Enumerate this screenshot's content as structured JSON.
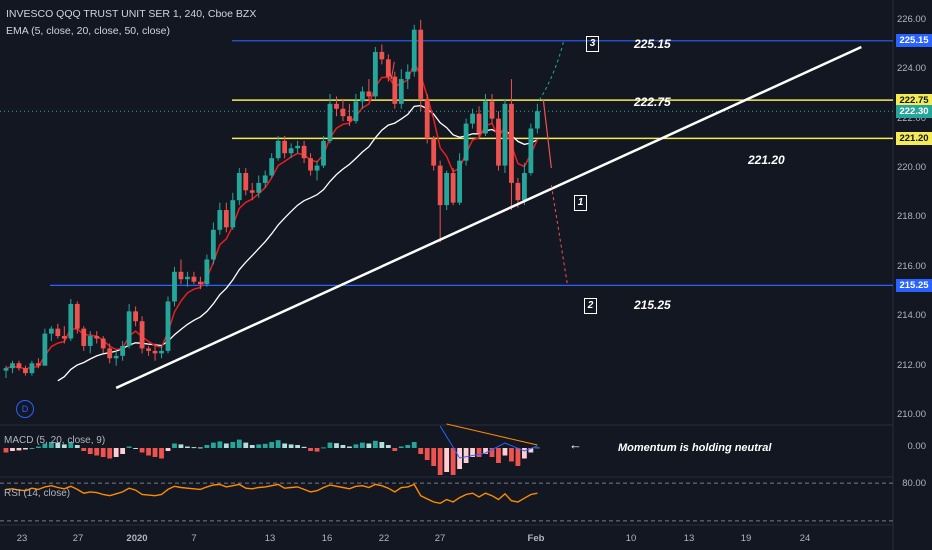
{
  "header": {
    "symbol_line": "INVESCO QQQ TRUST UNIT SER 1, 240, Cboe BZX",
    "ema_line": "EMA (5, close, 20, close, 50, close)"
  },
  "panels": {
    "macd_title": "MACD (5, 20, close, 9)",
    "rsi_title": "RSI (14, close)",
    "macd_axis": "0.00",
    "rsi_axis": "80.00"
  },
  "annotations": {
    "level_225": "225.15",
    "level_222": "222.75",
    "level_221": "221.20",
    "level_215": "215.25",
    "box_1": "1",
    "box_2": "2",
    "box_3": "3",
    "momentum_note": "Momentum is holding neutral",
    "left_arrow": "←",
    "d_badge": "D"
  },
  "price_axis": {
    "ticks": [
      "226.00",
      "224.00",
      "222.00",
      "220.00",
      "218.00",
      "216.00",
      "214.00",
      "212.00",
      "210.00"
    ],
    "labels": [
      {
        "text": "225.15",
        "color": "#2962ff",
        "fg": "#ffffff"
      },
      {
        "text": "222.75",
        "color": "#f5eb55",
        "fg": "#131722"
      },
      {
        "text": "222.30",
        "color": "#26a69a",
        "fg": "#ffffff"
      },
      {
        "text": "221.20",
        "color": "#f5eb55",
        "fg": "#131722"
      },
      {
        "text": "215.25",
        "color": "#2962ff",
        "fg": "#ffffff"
      }
    ]
  },
  "date_axis": [
    "23",
    "27",
    "2020",
    "7",
    "13",
    "16",
    "22",
    "27",
    "Feb",
    "10",
    "13",
    "19",
    "24"
  ],
  "colors": {
    "background": "#131722",
    "up": "#26a69a",
    "down": "#ef5350",
    "ema_fast": "#e91e1e",
    "ema_slow": "#ffffff",
    "level_blue": "#2962ff",
    "level_yellow": "#f5eb55",
    "trendline": "#ffffff",
    "rsi": "#ff8c00"
  },
  "chart_data": {
    "type": "candlestick",
    "title": "INVESCO QQQ TRUST UNIT SER 1, 240, Cboe BZX",
    "ylim": [
      209.6,
      226.6
    ],
    "y_ticks": [
      210,
      212,
      214,
      216,
      218,
      220,
      222,
      224,
      226
    ],
    "horizontal_levels": [
      225.15,
      222.75,
      221.2,
      215.25
    ],
    "last_price": 222.3,
    "candles": [
      [
        211.8,
        212.0,
        211.5,
        211.9
      ],
      [
        211.9,
        212.2,
        211.7,
        212.1
      ],
      [
        212.1,
        212.2,
        211.8,
        211.9
      ],
      [
        211.9,
        212.0,
        211.6,
        211.7
      ],
      [
        211.7,
        212.2,
        211.6,
        212.1
      ],
      [
        212.1,
        212.3,
        211.9,
        212.0
      ],
      [
        212.0,
        213.5,
        212.0,
        213.3
      ],
      [
        213.3,
        213.6,
        213.0,
        213.5
      ],
      [
        213.5,
        213.7,
        213.1,
        213.2
      ],
      [
        213.2,
        213.6,
        212.9,
        213.1
      ],
      [
        213.1,
        214.7,
        213.0,
        214.5
      ],
      [
        214.5,
        214.6,
        213.3,
        213.5
      ],
      [
        213.5,
        213.6,
        212.6,
        212.8
      ],
      [
        212.8,
        213.4,
        212.5,
        213.2
      ],
      [
        213.2,
        213.4,
        212.9,
        213.1
      ],
      [
        213.1,
        213.2,
        212.5,
        212.7
      ],
      [
        212.7,
        212.9,
        212.1,
        212.3
      ],
      [
        212.3,
        212.6,
        212.0,
        212.4
      ],
      [
        212.4,
        213.0,
        212.2,
        212.8
      ],
      [
        212.8,
        214.5,
        212.7,
        214.2
      ],
      [
        214.2,
        214.4,
        213.6,
        213.8
      ],
      [
        213.8,
        214.0,
        212.5,
        212.7
      ],
      [
        212.7,
        212.8,
        212.4,
        212.6
      ],
      [
        212.6,
        212.9,
        212.2,
        212.5
      ],
      [
        212.5,
        212.8,
        212.3,
        212.6
      ],
      [
        212.6,
        214.8,
        212.5,
        214.6
      ],
      [
        214.6,
        216.0,
        214.4,
        215.8
      ],
      [
        215.8,
        216.3,
        215.3,
        215.5
      ],
      [
        215.5,
        215.8,
        215.2,
        215.6
      ],
      [
        215.6,
        215.8,
        215.3,
        215.4
      ],
      [
        215.4,
        215.6,
        215.1,
        215.3
      ],
      [
        215.3,
        216.5,
        215.2,
        216.3
      ],
      [
        216.3,
        217.8,
        216.1,
        217.5
      ],
      [
        217.5,
        218.6,
        217.3,
        218.3
      ],
      [
        218.3,
        218.6,
        217.4,
        217.6
      ],
      [
        217.6,
        219.0,
        217.5,
        218.7
      ],
      [
        218.7,
        220.0,
        218.5,
        219.8
      ],
      [
        219.8,
        220.0,
        218.9,
        219.1
      ],
      [
        219.1,
        219.4,
        218.7,
        219.0
      ],
      [
        219.0,
        219.7,
        218.8,
        219.4
      ],
      [
        219.4,
        219.9,
        219.2,
        219.7
      ],
      [
        219.7,
        220.6,
        219.6,
        220.4
      ],
      [
        220.4,
        221.3,
        220.3,
        221.1
      ],
      [
        221.1,
        221.3,
        220.4,
        220.6
      ],
      [
        220.6,
        221.0,
        220.4,
        220.8
      ],
      [
        220.8,
        221.1,
        220.6,
        220.9
      ],
      [
        220.9,
        221.1,
        220.2,
        220.4
      ],
      [
        220.4,
        220.6,
        219.7,
        219.9
      ],
      [
        219.9,
        220.3,
        219.5,
        220.1
      ],
      [
        220.1,
        221.3,
        220.0,
        221.1
      ],
      [
        221.1,
        223.0,
        221.0,
        222.6
      ],
      [
        222.6,
        222.9,
        222.1,
        222.4
      ],
      [
        222.4,
        222.8,
        221.9,
        222.1
      ],
      [
        222.1,
        222.6,
        221.7,
        221.9
      ],
      [
        221.9,
        223.0,
        221.8,
        222.7
      ],
      [
        222.7,
        223.3,
        222.4,
        223.1
      ],
      [
        223.1,
        223.6,
        222.7,
        222.9
      ],
      [
        222.9,
        224.9,
        222.8,
        224.7
      ],
      [
        224.7,
        225.0,
        224.2,
        224.4
      ],
      [
        224.4,
        224.6,
        223.5,
        223.7
      ],
      [
        223.7,
        223.9,
        222.4,
        222.6
      ],
      [
        222.6,
        224.0,
        222.4,
        223.6
      ],
      [
        223.6,
        224.2,
        223.2,
        223.9
      ],
      [
        223.9,
        225.8,
        223.7,
        225.6
      ],
      [
        225.6,
        226.0,
        222.3,
        222.8
      ],
      [
        222.8,
        223.0,
        221.0,
        221.2
      ],
      [
        221.2,
        221.3,
        219.9,
        220.1
      ],
      [
        220.1,
        220.3,
        217.0,
        218.5
      ],
      [
        218.5,
        219.9,
        218.3,
        219.8
      ],
      [
        219.8,
        220.0,
        218.5,
        218.6
      ],
      [
        218.6,
        220.6,
        218.5,
        220.3
      ],
      [
        220.3,
        222.0,
        220.1,
        221.8
      ],
      [
        221.8,
        222.4,
        221.6,
        222.2
      ],
      [
        222.2,
        222.5,
        221.2,
        221.4
      ],
      [
        221.4,
        223.0,
        221.3,
        222.7
      ],
      [
        222.7,
        223.0,
        221.8,
        222.0
      ],
      [
        222.0,
        222.3,
        219.9,
        220.1
      ],
      [
        220.1,
        222.8,
        219.8,
        222.6
      ],
      [
        222.6,
        223.6,
        218.3,
        219.4
      ],
      [
        219.4,
        219.6,
        218.4,
        218.7
      ],
      [
        218.7,
        220.2,
        218.5,
        219.8
      ],
      [
        219.8,
        221.8,
        219.7,
        221.6
      ],
      [
        221.6,
        222.6,
        221.4,
        222.3
      ]
    ],
    "macd_hist": [
      -0.15,
      -0.1,
      -0.08,
      -0.05,
      0.0,
      0.05,
      0.15,
      0.2,
      0.18,
      0.12,
      0.2,
      0.1,
      -0.1,
      -0.2,
      -0.25,
      -0.3,
      -0.35,
      -0.3,
      -0.2,
      0.05,
      0.0,
      -0.15,
      -0.25,
      -0.3,
      -0.35,
      -0.1,
      0.15,
      0.12,
      0.05,
      0.03,
      0.02,
      0.1,
      0.18,
      0.22,
      0.15,
      0.2,
      0.28,
      0.18,
      0.1,
      0.12,
      0.14,
      0.2,
      0.26,
      0.15,
      0.12,
      0.1,
      0.04,
      -0.1,
      -0.12,
      0.02,
      0.18,
      0.16,
      0.1,
      0.05,
      0.12,
      0.18,
      0.15,
      0.24,
      0.2,
      0.1,
      -0.1,
      0.05,
      0.1,
      0.2,
      -0.2,
      -0.4,
      -0.6,
      -0.9,
      -0.8,
      -0.9,
      -0.7,
      -0.5,
      -0.3,
      -0.3,
      -0.2,
      -0.3,
      -0.5,
      -0.25,
      -0.45,
      -0.6,
      -0.35,
      -0.15,
      0.02
    ],
    "rsi": [
      70,
      71,
      69,
      68,
      72,
      70,
      74,
      76,
      73,
      71,
      75,
      70,
      64,
      66,
      65,
      62,
      60,
      63,
      66,
      72,
      69,
      62,
      61,
      60,
      62,
      70,
      75,
      73,
      72,
      71,
      70,
      74,
      77,
      78,
      74,
      76,
      78,
      72,
      71,
      73,
      74,
      76,
      78,
      72,
      73,
      74,
      70,
      66,
      68,
      73,
      77,
      75,
      73,
      71,
      75,
      76,
      73,
      78,
      76,
      72,
      66,
      73,
      74,
      78,
      60,
      55,
      50,
      48,
      54,
      50,
      57,
      62,
      64,
      58,
      64,
      60,
      54,
      63,
      52,
      50,
      56,
      62,
      64
    ],
    "rsi_levels": [
      80,
      20
    ]
  }
}
